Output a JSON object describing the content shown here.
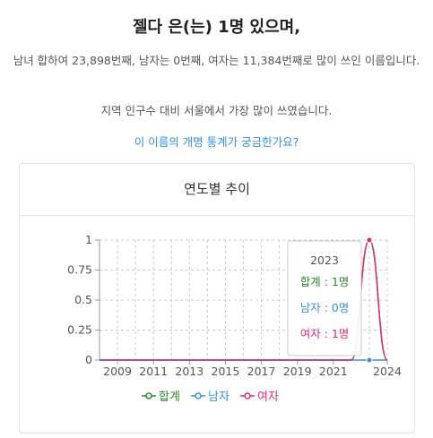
{
  "header": {
    "title": "젤다 은(는) 1명 있으며,",
    "description": "남녀 합하여 23,898번째, 남자는 0번째, 여자는 11,384번째로 많이 쓰인 이름입니다.",
    "region_note": "지역 인구수 대비 서울에서 가장 많이 쓰였습니다.",
    "rename_link": "이 이름의 개명 통계가 궁금한가요?"
  },
  "card": {
    "title": "연도별 추이"
  },
  "colors": {
    "total": "#2a8a2a",
    "male": "#3b8fe0",
    "female": "#e0287a",
    "grid": "#cccccc",
    "axis": "#999999"
  },
  "tooltip": {
    "year": "2023",
    "total": "합계 : 1명",
    "male": "남자 : 0명",
    "female": "여자 : 1명"
  },
  "chart_data": {
    "type": "line",
    "x_ticks": [
      "2009",
      "2011",
      "2013",
      "2015",
      "2017",
      "2019",
      "2021",
      "2024"
    ],
    "y_ticks": [
      "0",
      "0.25",
      "0.5",
      "0.75",
      "1"
    ],
    "xlim": [
      2008,
      2024
    ],
    "ylim": [
      0,
      1
    ],
    "x": [
      2008,
      2009,
      2010,
      2011,
      2012,
      2013,
      2014,
      2015,
      2016,
      2017,
      2018,
      2019,
      2020,
      2021,
      2022,
      2023,
      2024
    ],
    "series": [
      {
        "name": "합계",
        "values": [
          0,
          0,
          0,
          0,
          0,
          0,
          0,
          0,
          0,
          0,
          0,
          0,
          0,
          0,
          0,
          1,
          0
        ]
      },
      {
        "name": "남자",
        "values": [
          0,
          0,
          0,
          0,
          0,
          0,
          0,
          0,
          0,
          0,
          0,
          0,
          0,
          0,
          0,
          0,
          0
        ]
      },
      {
        "name": "여자",
        "values": [
          0,
          0,
          0,
          0,
          0,
          0,
          0,
          0,
          0,
          0,
          0,
          0,
          0,
          0,
          0,
          1,
          0
        ]
      }
    ],
    "grid": true,
    "legend": "bottom"
  }
}
